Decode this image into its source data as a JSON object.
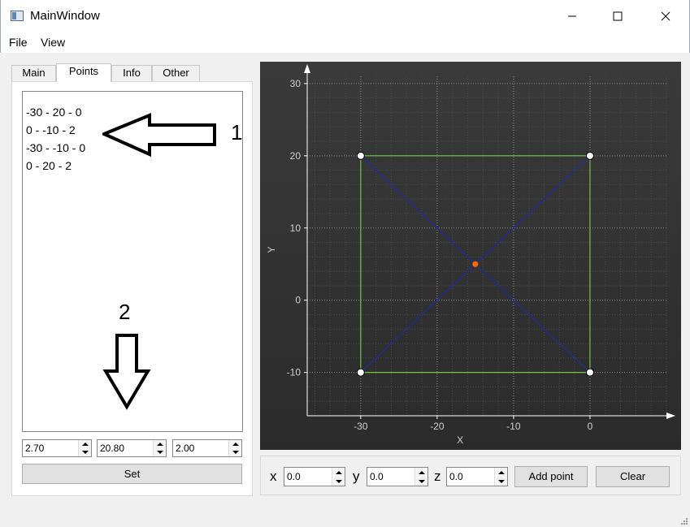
{
  "window": {
    "title": "MainWindow",
    "icon": "app-window-icon",
    "controls": [
      "minimize-icon",
      "maximize-icon",
      "close-icon"
    ]
  },
  "menu": {
    "file": "File",
    "view": "View"
  },
  "tabs": [
    {
      "label": "Main",
      "active": false
    },
    {
      "label": "Points",
      "active": true
    },
    {
      "label": "Info",
      "active": false
    },
    {
      "label": "Other",
      "active": false
    }
  ],
  "points_list": [
    "-30 - 20 - 0",
    "0 - -10 - 2",
    "-30 - -10 - 0",
    "0 - 20 - 2"
  ],
  "annotations": {
    "arrow1_label": "1",
    "arrow2_label": "2"
  },
  "edit_fields": {
    "x": "2.70",
    "y": "20.80",
    "z": "2.00"
  },
  "set_button": "Set",
  "add_point": {
    "x_label": "x",
    "y_label": "y",
    "z_label": "z",
    "x_value": "0.0",
    "y_value": "0.0",
    "z_value": "0.0",
    "add_button": "Add point",
    "clear_button": "Clear"
  },
  "colors": {
    "chart_bg_top": "#3a3a3a",
    "chart_bg_bottom": "#2b2b2b",
    "rectangle": "#6cc644",
    "diagonals": "#1f2aa8",
    "center_point": "#ff6a00",
    "vertex_fill": "#ffffff"
  },
  "chart_data": {
    "type": "scatter",
    "xlabel": "X",
    "ylabel": "Y",
    "xlim": [
      -37,
      10
    ],
    "ylim": [
      -16,
      31
    ],
    "x_ticks": [
      -30,
      -20,
      -10,
      0
    ],
    "y_ticks": [
      -10,
      0,
      10,
      20,
      30
    ],
    "grid": true,
    "legend": "none",
    "vertices": [
      {
        "x": -30,
        "y": 20
      },
      {
        "x": 0,
        "y": 20
      },
      {
        "x": 0,
        "y": -10
      },
      {
        "x": -30,
        "y": -10
      }
    ],
    "rectangle": [
      [
        -30,
        20
      ],
      [
        0,
        20
      ],
      [
        0,
        -10
      ],
      [
        -30,
        -10
      ]
    ],
    "diagonals": [
      [
        [
          -30,
          20
        ],
        [
          0,
          -10
        ]
      ],
      [
        [
          0,
          20
        ],
        [
          -30,
          -10
        ]
      ]
    ],
    "center": {
      "x": -15,
      "y": 5
    }
  }
}
